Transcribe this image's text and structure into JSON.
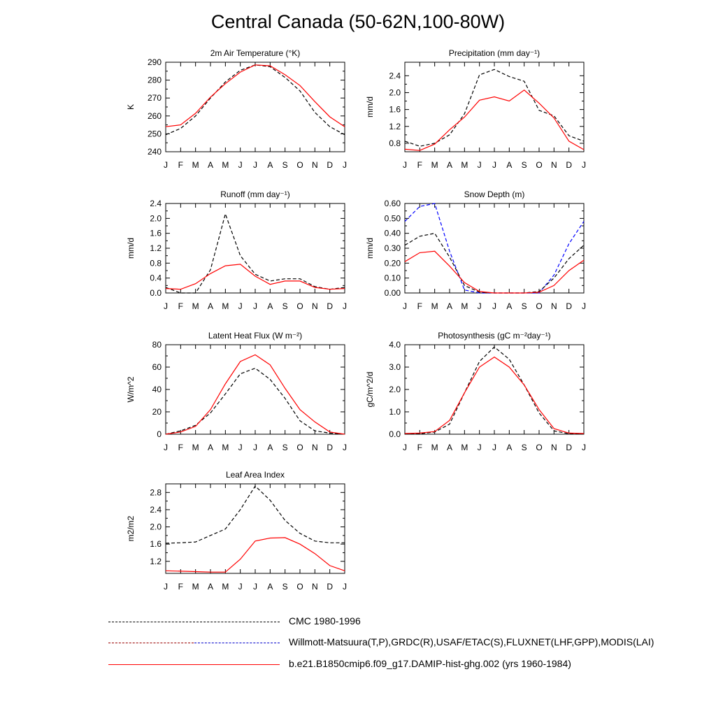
{
  "page": {
    "title": "Central Canada (50-62N,100-80W)"
  },
  "colors": {
    "obs": "#000000",
    "obs_alt": "#0000ff",
    "model": "#ff0000",
    "axis": "#000000"
  },
  "months": [
    "J",
    "F",
    "M",
    "A",
    "M",
    "J",
    "J",
    "A",
    "S",
    "O",
    "N",
    "D",
    "J"
  ],
  "chart_data": [
    {
      "id": "tsa",
      "type": "line",
      "title": "2m Air Temperature (°K)",
      "ylabel": "K",
      "ylim": [
        240,
        290
      ],
      "yticks": [
        240,
        250,
        260,
        270,
        280,
        290
      ],
      "ytick_labels": [
        "240",
        "250",
        "260",
        "270",
        "280",
        "290"
      ],
      "series": [
        {
          "style": "obs",
          "values": [
            249.5,
            253,
            260,
            270,
            279,
            285.5,
            288.5,
            287.5,
            281.5,
            274,
            262,
            254,
            249.5
          ]
        },
        {
          "style": "model",
          "values": [
            254,
            255,
            261.5,
            270.5,
            278,
            284.5,
            288.5,
            288,
            283,
            277,
            268,
            259.5,
            254
          ]
        }
      ]
    },
    {
      "id": "prec",
      "type": "line",
      "title": "Precipitation (mm day⁻¹)",
      "ylabel": "mm/d",
      "ylim": [
        0.6,
        2.72
      ],
      "yticks": [
        0.8,
        1.2,
        1.6,
        2.0,
        2.4
      ],
      "ytick_labels": [
        "0.8",
        "1.2",
        "1.6",
        "2.0",
        "2.4"
      ],
      "series": [
        {
          "style": "obs",
          "values": [
            0.85,
            0.73,
            0.8,
            1.0,
            1.5,
            2.42,
            2.55,
            2.38,
            2.27,
            1.58,
            1.45,
            0.98,
            0.85
          ]
        },
        {
          "style": "model",
          "values": [
            0.66,
            0.63,
            0.78,
            1.12,
            1.42,
            1.82,
            1.9,
            1.8,
            2.06,
            1.75,
            1.4,
            0.85,
            0.65
          ]
        }
      ]
    },
    {
      "id": "runoff",
      "type": "line",
      "title": "Runoff (mm day⁻¹)",
      "ylabel": "mm/d",
      "ylim": [
        0.0,
        2.4
      ],
      "yticks": [
        0.0,
        0.4,
        0.8,
        1.2,
        1.6,
        2.0,
        2.4
      ],
      "ytick_labels": [
        "0.0",
        "0.4",
        "0.8",
        "1.2",
        "1.6",
        "2.0",
        "2.4"
      ],
      "series": [
        {
          "style": "obs",
          "values": [
            0.15,
            0.0,
            0.0,
            0.62,
            2.12,
            1.0,
            0.5,
            0.32,
            0.38,
            0.38,
            0.17,
            0.1,
            0.15
          ]
        },
        {
          "style": "model",
          "values": [
            0.12,
            0.1,
            0.25,
            0.52,
            0.73,
            0.77,
            0.45,
            0.23,
            0.32,
            0.32,
            0.15,
            0.1,
            0.12
          ]
        }
      ]
    },
    {
      "id": "snow",
      "type": "line",
      "title": "Snow Depth (m)",
      "ylabel": "mm/d",
      "ylim": [
        0.0,
        0.6
      ],
      "yticks": [
        0.0,
        0.1,
        0.2,
        0.3,
        0.4,
        0.5,
        0.6
      ],
      "ytick_labels": [
        "0.00",
        "0.10",
        "0.20",
        "0.30",
        "0.40",
        "0.50",
        "0.60"
      ],
      "series": [
        {
          "style": "obs_alt",
          "values": [
            0.48,
            0.58,
            0.6,
            0.28,
            0.02,
            0.0,
            0.0,
            0.0,
            0.0,
            0.0,
            0.12,
            0.33,
            0.48
          ]
        },
        {
          "style": "obs",
          "values": [
            0.32,
            0.38,
            0.4,
            0.24,
            0.05,
            0.005,
            0.0,
            0.0,
            0.0,
            0.01,
            0.1,
            0.23,
            0.32
          ]
        },
        {
          "style": "model",
          "values": [
            0.21,
            0.27,
            0.28,
            0.18,
            0.07,
            0.01,
            0.0,
            0.0,
            0.0,
            0.005,
            0.05,
            0.15,
            0.22
          ]
        }
      ]
    },
    {
      "id": "lhf",
      "type": "line",
      "title": "Latent Heat Flux (W m⁻²)",
      "ylabel": "W/m^2",
      "ylim": [
        0,
        80
      ],
      "yticks": [
        0,
        20,
        40,
        60,
        80
      ],
      "ytick_labels": [
        "0",
        "20",
        "40",
        "60",
        "80"
      ],
      "series": [
        {
          "style": "obs",
          "values": [
            0,
            3,
            8,
            19,
            36,
            54,
            59,
            49,
            32,
            12,
            3,
            1,
            0
          ]
        },
        {
          "style": "model",
          "values": [
            0,
            2,
            7,
            22,
            45,
            65,
            71,
            62,
            41,
            22,
            11,
            2,
            0
          ]
        }
      ]
    },
    {
      "id": "gpp",
      "type": "line",
      "title": "Photosynthesis (gC m⁻²day⁻¹)",
      "ylabel": "gC/m^2/d",
      "ylim": [
        0.0,
        4.0
      ],
      "yticks": [
        0.0,
        1.0,
        2.0,
        3.0,
        4.0
      ],
      "ytick_labels": [
        "0.0",
        "1.0",
        "2.0",
        "3.0",
        "4.0"
      ],
      "series": [
        {
          "style": "obs",
          "values": [
            0.02,
            0.02,
            0.1,
            0.45,
            1.85,
            3.25,
            3.9,
            3.35,
            2.2,
            0.95,
            0.15,
            0.02,
            0.02
          ]
        },
        {
          "style": "model",
          "values": [
            0.03,
            0.05,
            0.12,
            0.62,
            1.85,
            3.0,
            3.45,
            3.0,
            2.2,
            1.1,
            0.25,
            0.05,
            0.03
          ]
        }
      ]
    },
    {
      "id": "lai",
      "type": "line",
      "title": "Leaf Area Index",
      "ylabel": "m2/m2",
      "ylim": [
        0.92,
        3.0
      ],
      "yticks": [
        1.2,
        1.6,
        2.0,
        2.4,
        2.8
      ],
      "ytick_labels": [
        "1.2",
        "1.6",
        "2.0",
        "2.4",
        "2.8"
      ],
      "series": [
        {
          "style": "obs",
          "values": [
            1.62,
            1.63,
            1.65,
            1.8,
            1.95,
            2.4,
            2.95,
            2.62,
            2.15,
            1.85,
            1.67,
            1.63,
            1.63
          ]
        },
        {
          "style": "model",
          "values": [
            0.98,
            0.97,
            0.96,
            0.95,
            0.95,
            1.25,
            1.67,
            1.74,
            1.75,
            1.6,
            1.38,
            1.1,
            0.98
          ]
        }
      ]
    }
  ],
  "legend": [
    {
      "label": "CMC 1980-1996",
      "style": "obs"
    },
    {
      "label": "Willmott-Matsuura(T,P),GRDC(R),USAF/ETAC(S),FLUXNET(LHF,GPP),MODIS(LAI)",
      "style": "obs_multi"
    },
    {
      "label": "b.e21.B1850cmip6.f09_g17.DAMIP-hist-ghg.002 (yrs 1960-1984)",
      "style": "model"
    }
  ]
}
